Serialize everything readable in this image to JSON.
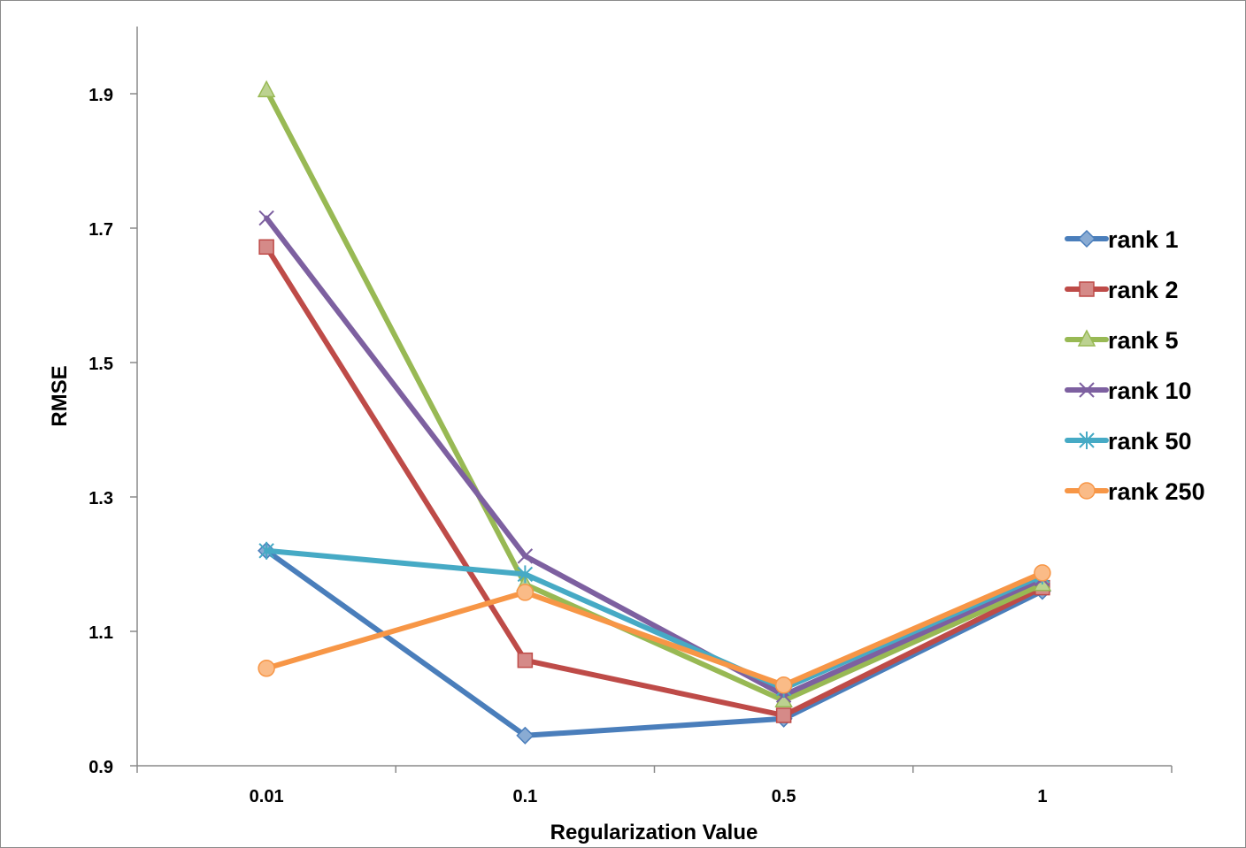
{
  "chart_data": {
    "type": "line",
    "title": "",
    "xlabel": "Regularization Value",
    "ylabel": "RMSE",
    "categories": [
      "0.01",
      "0.1",
      "0.5",
      "1"
    ],
    "ylim": [
      0.9,
      2.0
    ],
    "yticks": [
      "0.9",
      "1.1",
      "1.3",
      "1.5",
      "1.7",
      "1.9"
    ],
    "grid": false,
    "legend_position": "right",
    "series": [
      {
        "name": "rank 1",
        "color": "#4a7ebb",
        "marker": "diamond",
        "values": [
          1.22,
          0.945,
          0.97,
          1.16
        ]
      },
      {
        "name": "rank 2",
        "color": "#be4b48",
        "marker": "square",
        "values": [
          1.672,
          1.057,
          0.975,
          1.165
        ]
      },
      {
        "name": "rank 5",
        "color": "#98b954",
        "marker": "triangle",
        "values": [
          1.905,
          1.17,
          0.997,
          1.17
        ]
      },
      {
        "name": "rank 10",
        "color": "#7d60a0",
        "marker": "x",
        "values": [
          1.715,
          1.212,
          1.005,
          1.178
        ]
      },
      {
        "name": "rank 50",
        "color": "#46aac5",
        "marker": "star",
        "values": [
          1.22,
          1.185,
          1.015,
          1.183
        ]
      },
      {
        "name": "rank 250",
        "color": "#f79646",
        "marker": "circle",
        "values": [
          1.045,
          1.158,
          1.02,
          1.187
        ]
      }
    ]
  }
}
